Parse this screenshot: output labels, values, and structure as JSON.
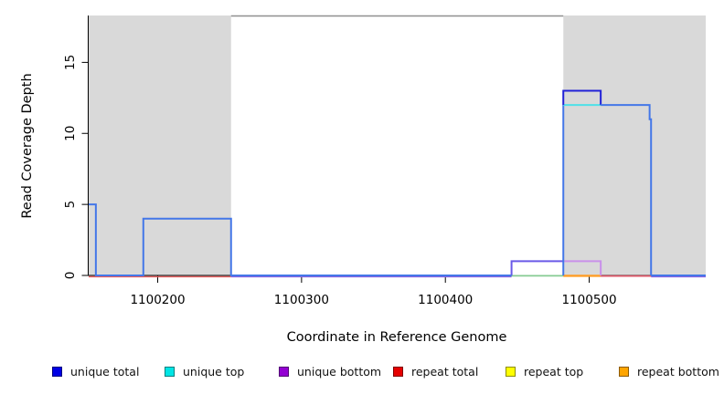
{
  "chart_data": {
    "type": "line",
    "title": "",
    "xlabel": "Coordinate in Reference Genome",
    "ylabel": "Read Coverage Depth",
    "xlim": [
      1100152,
      1100581
    ],
    "ylim": [
      0,
      18.3
    ],
    "x_ticks": [
      1100200,
      1100300,
      1100400,
      1100500
    ],
    "y_ticks": [
      0,
      5,
      10,
      15
    ],
    "grid": false,
    "legend_position": "bottom",
    "shaded_regions": [
      {
        "from": 1100152,
        "to": 1100251
      },
      {
        "from": 1100482,
        "to": 1100581
      }
    ],
    "top_line": {
      "from": 1100251,
      "to": 1100482
    },
    "palette": {
      "gray_fill": "#D9D9D9",
      "gray_line": "#8F8F8F",
      "royal": "#4477E8",
      "dark_blue": "#2222D8",
      "cyan": "#4FE0E8",
      "purple_blue": "#6A5AE8",
      "orchid": "#C990EA",
      "green": "#85CB92",
      "orange": "#FF9D26",
      "crimson": "#DE5668",
      "red": "#E85B5B",
      "purple_under": "#8A63E0"
    },
    "series": [
      {
        "name": "unique total",
        "color": "#0000E5",
        "steps": [
          [
            1100152,
            5
          ],
          [
            1100157,
            0
          ],
          [
            1100190,
            4
          ],
          [
            1100251,
            0
          ],
          [
            1100482,
            13
          ],
          [
            1100508,
            12
          ],
          [
            1100542,
            11
          ],
          [
            1100543,
            0
          ]
        ]
      },
      {
        "name": "unique top",
        "color": "#00E5E5",
        "steps": [
          [
            1100482,
            12
          ],
          [
            1100508,
            12
          ],
          [
            1100542,
            12
          ],
          [
            1100543,
            0
          ]
        ]
      },
      {
        "name": "unique bottom",
        "color": "#9400D3",
        "steps": [
          [
            1100446,
            1
          ],
          [
            1100508,
            1
          ],
          [
            1100508,
            0
          ]
        ]
      },
      {
        "name": "repeat total",
        "color": "#E60000",
        "steps": [
          [
            1100152,
            0
          ],
          [
            1100581,
            0
          ]
        ]
      },
      {
        "name": "repeat top",
        "color": "#FFFF00",
        "steps": [
          [
            1100152,
            0
          ],
          [
            1100581,
            0
          ]
        ]
      },
      {
        "name": "repeat bottom",
        "color": "#FFA500",
        "steps": [
          [
            1100482,
            0
          ],
          [
            1100508,
            0
          ]
        ]
      }
    ],
    "segments": [
      {
        "color": "red",
        "width": 1.4,
        "dy": 1.4,
        "points": [
          [
            1100152,
            0
          ],
          [
            1100251,
            0
          ]
        ]
      },
      {
        "color": "purple_under",
        "width": 1.4,
        "dy": 1.4,
        "points": [
          [
            1100251,
            0
          ],
          [
            1100446,
            0
          ]
        ]
      },
      {
        "color": "purple_under",
        "width": 1.4,
        "dy": 1.4,
        "points": [
          [
            1100543,
            0
          ],
          [
            1100581,
            0
          ]
        ]
      },
      {
        "color": "green",
        "width": 1.8,
        "dy": 0.4,
        "points": [
          [
            1100446,
            0
          ],
          [
            1100482,
            0
          ]
        ]
      },
      {
        "color": "orange",
        "width": 2.4,
        "dy": 0.4,
        "points": [
          [
            1100482,
            0
          ],
          [
            1100508,
            0
          ]
        ]
      },
      {
        "color": "crimson",
        "width": 1.8,
        "dy": 0.6,
        "points": [
          [
            1100508,
            0
          ],
          [
            1100543,
            0
          ]
        ]
      },
      {
        "color": "purple_blue",
        "width": 2,
        "points": [
          [
            1100446,
            0
          ],
          [
            1100446,
            1
          ],
          [
            1100482,
            1
          ]
        ]
      },
      {
        "color": "orchid",
        "width": 2,
        "points": [
          [
            1100482,
            1
          ],
          [
            1100508,
            1
          ],
          [
            1100508,
            0
          ]
        ]
      },
      {
        "color": "royal",
        "width": 2,
        "points": [
          [
            1100152,
            5
          ],
          [
            1100157,
            5
          ],
          [
            1100157,
            0
          ],
          [
            1100190,
            0
          ],
          [
            1100190,
            4
          ],
          [
            1100251,
            4
          ],
          [
            1100251,
            0
          ],
          [
            1100446,
            0
          ]
        ]
      },
      {
        "color": "royal",
        "width": 2,
        "points": [
          [
            1100482,
            0
          ],
          [
            1100482,
            12
          ]
        ]
      },
      {
        "color": "cyan",
        "width": 2,
        "points": [
          [
            1100482,
            12
          ],
          [
            1100508,
            12
          ]
        ]
      },
      {
        "color": "dark_blue",
        "width": 2,
        "points": [
          [
            1100482,
            12
          ],
          [
            1100482,
            13
          ],
          [
            1100508,
            13
          ],
          [
            1100508,
            12
          ]
        ]
      },
      {
        "color": "royal",
        "width": 2,
        "points": [
          [
            1100508,
            12
          ],
          [
            1100542,
            12
          ],
          [
            1100542,
            11
          ],
          [
            1100543,
            11
          ],
          [
            1100543,
            0
          ]
        ]
      },
      {
        "color": "royal",
        "width": 2,
        "points": [
          [
            1100543,
            0
          ],
          [
            1100581,
            0
          ]
        ]
      }
    ],
    "legend": [
      {
        "label": "unique total",
        "color": "#0000E5"
      },
      {
        "label": "unique top",
        "color": "#00E5E5"
      },
      {
        "label": "unique bottom",
        "color": "#9400D3"
      },
      {
        "label": "repeat total",
        "color": "#E60000"
      },
      {
        "label": "repeat top",
        "color": "#FFFF00"
      },
      {
        "label": "repeat bottom",
        "color": "#FFA500"
      }
    ]
  }
}
